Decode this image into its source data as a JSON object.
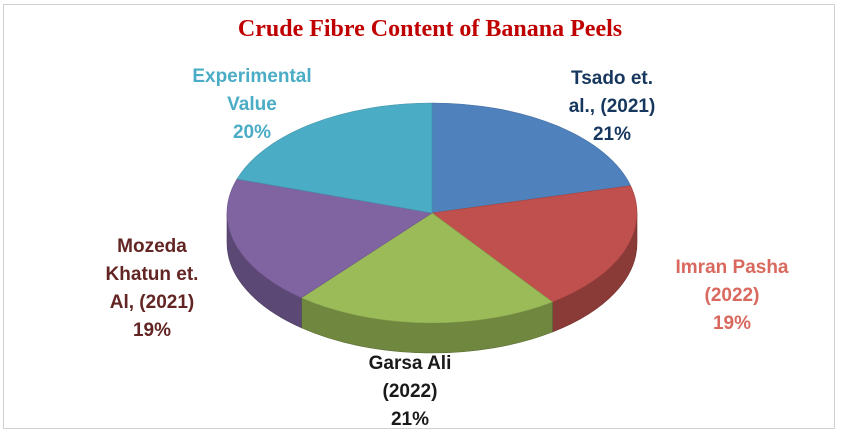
{
  "chart_data": {
    "type": "pie",
    "title": "Crude Fibre Content of Banana Peels",
    "categories": [
      "Tsado et. al., (2021)",
      "Imran Pasha (2022)",
      "Garsa Ali (2022)",
      "Mozeda Khatun et. Al, (2021)",
      "Experimental Value"
    ],
    "values": [
      21,
      19,
      21,
      19,
      20
    ],
    "value_labels": [
      "21%",
      "19%",
      "21%",
      "19%",
      "20%"
    ],
    "colors": [
      "#4f81bd",
      "#c0504d",
      "#9bbb59",
      "#8064a2",
      "#4bacc6"
    ],
    "label_colors": [
      "#17375e",
      "#d9695f",
      "#1a1a1a",
      "#632523",
      "#4bacc6"
    ]
  }
}
